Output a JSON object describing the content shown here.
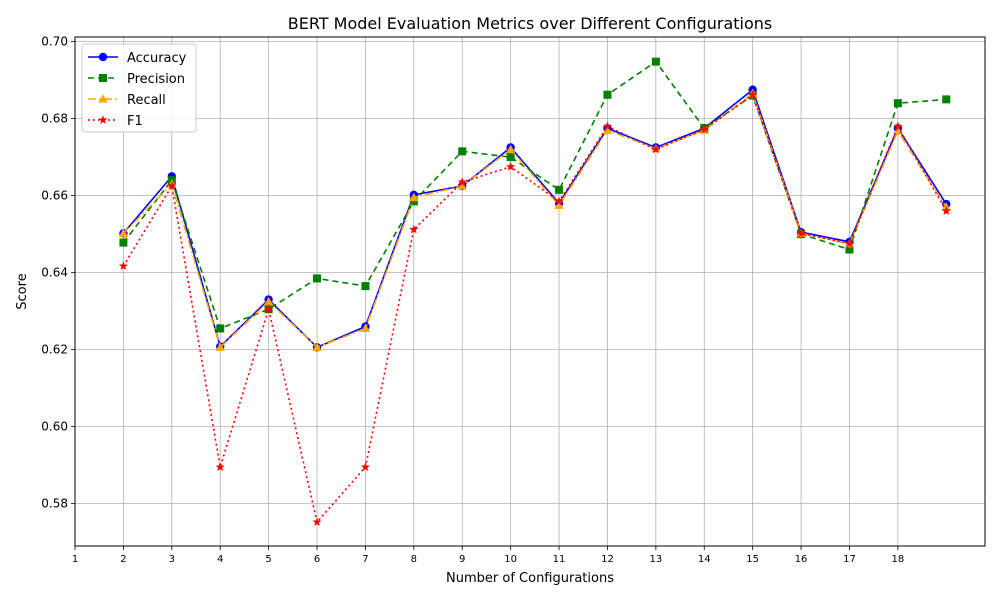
{
  "chart_data": {
    "type": "line",
    "title": "BERT Model Evaluation Metrics over Different Configurations",
    "xlabel": "Number of Configurations",
    "ylabel": "Score",
    "x": [
      2,
      3,
      4,
      5,
      6,
      7,
      8,
      9,
      10,
      11,
      12,
      13,
      14,
      15,
      16,
      17,
      18,
      19
    ],
    "x_tick_labels": [
      "1",
      "2",
      "3",
      "4",
      "5",
      "6",
      "7",
      "8",
      "9",
      "10",
      "11",
      "12",
      "13",
      "14",
      "15",
      "16",
      "17",
      "18"
    ],
    "x_tick_values": [
      1,
      2,
      3,
      4,
      5,
      6,
      7,
      8,
      9,
      10,
      11,
      12,
      13,
      14,
      15,
      16,
      17,
      18
    ],
    "y_tick_labels": [
      "0.58",
      "0.60",
      "0.62",
      "0.64",
      "0.66",
      "0.68",
      "0.70"
    ],
    "y_tick_values": [
      0.58,
      0.6,
      0.62,
      0.64,
      0.66,
      0.68,
      0.7
    ],
    "xlim": [
      1,
      19.8
    ],
    "ylim": [
      0.569,
      0.7012
    ],
    "grid": true,
    "legend_position": "top-left",
    "series": [
      {
        "name": "Accuracy",
        "color": "#0000ff",
        "marker": "circle",
        "line_style": "solid",
        "values": [
          0.6502,
          0.665,
          0.6208,
          0.633,
          0.6206,
          0.626,
          0.6602,
          0.6625,
          0.6725,
          0.658,
          0.6775,
          0.6725,
          0.6775,
          0.6875,
          0.6505,
          0.648,
          0.6775,
          0.6578
        ]
      },
      {
        "name": "Precision",
        "color": "#008000",
        "marker": "square",
        "line_style": "dashed",
        "values": [
          0.6478,
          0.664,
          0.6255,
          0.6305,
          0.6385,
          0.6365,
          0.6585,
          0.6715,
          0.67,
          0.6615,
          0.6862,
          0.6948,
          0.6775,
          0.686,
          0.65,
          0.646,
          0.684,
          0.685
        ]
      },
      {
        "name": "Recall",
        "color": "#ffa500",
        "marker": "triangle",
        "line_style": "dashdot",
        "values": [
          0.6502,
          0.663,
          0.6206,
          0.6325,
          0.6206,
          0.6255,
          0.6595,
          0.6625,
          0.672,
          0.6575,
          0.677,
          0.6722,
          0.677,
          0.6865,
          0.6502,
          0.6475,
          0.6768,
          0.657
        ]
      },
      {
        "name": "F1",
        "color": "#ff0000",
        "marker": "star",
        "line_style": "dotted",
        "values": [
          0.6417,
          0.6625,
          0.5895,
          0.6305,
          0.5752,
          0.5895,
          0.6512,
          0.6635,
          0.6675,
          0.6585,
          0.678,
          0.672,
          0.6772,
          0.6862,
          0.6502,
          0.6475,
          0.678,
          0.656
        ]
      }
    ]
  }
}
